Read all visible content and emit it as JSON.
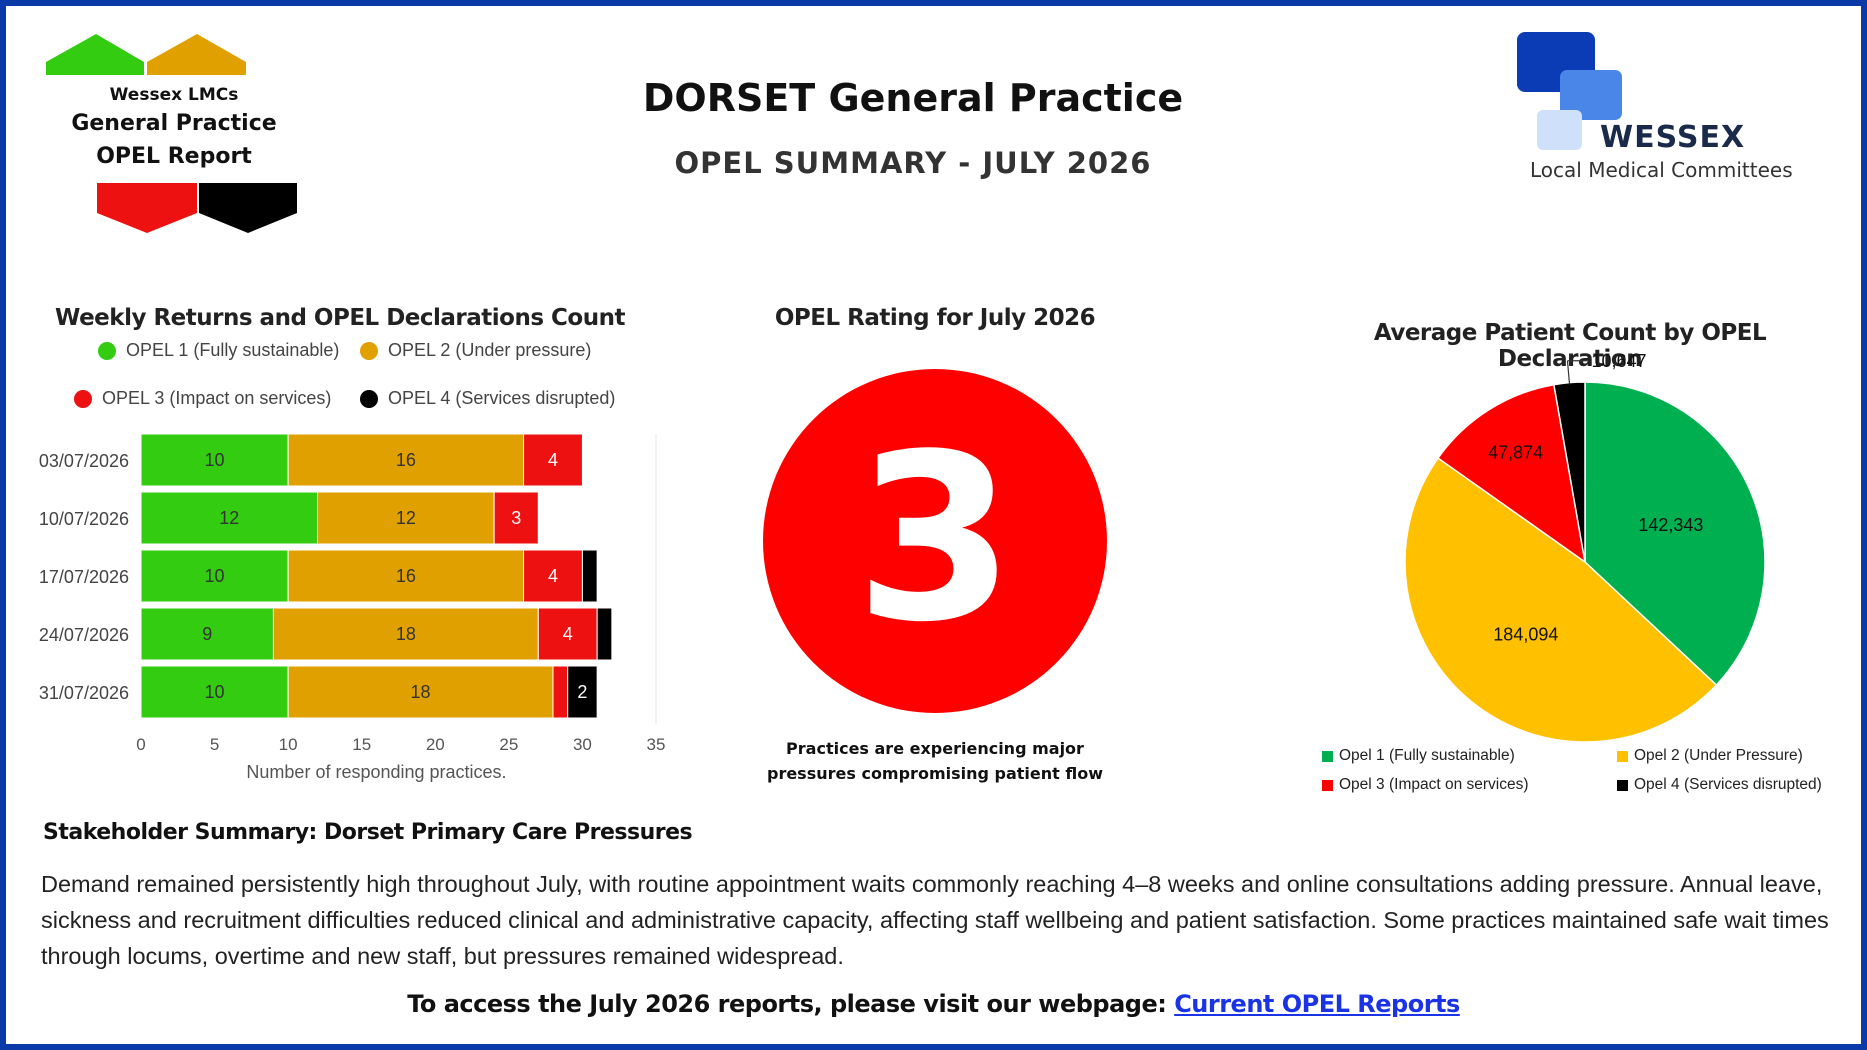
{
  "header": {
    "title": "DORSET General Practice",
    "subtitle": "OPEL SUMMARY - JULY 2026"
  },
  "lmc_badge": {
    "line1": "Wessex LMCs",
    "line2": "General Practice",
    "line3": "OPEL Report"
  },
  "wessex_logo": {
    "name": "WESSEX",
    "tagline": "Local Medical Committees"
  },
  "colors": {
    "opel1": "#33cc11",
    "opel2": "#e0a000",
    "opel3": "#ee1111",
    "opel4": "#000000",
    "pie_opel1": "#00b050",
    "pie_opel2": "#ffc000",
    "pie_opel3": "#ff0000",
    "pie_opel4": "#000000",
    "frame": "#0a3aa8",
    "link": "#1a33e6"
  },
  "bar_chart": {
    "title": "Weekly Returns and OPEL Declarations Count",
    "legend": [
      "OPEL 1 (Fully sustainable)",
      "OPEL 2 (Under pressure)",
      "OPEL 3 (Impact on services)",
      "OPEL 4 (Services disrupted)"
    ]
  },
  "rating": {
    "title": "OPEL Rating for July 2026",
    "value": "3",
    "caption_line1": "Practices are experiencing major",
    "caption_line2": "pressures compromising patient flow"
  },
  "pie_chart_meta": {
    "title": "Average Patient Count by OPEL Declaration",
    "legend": [
      "Opel 1 (Fully sustainable)",
      "Opel 2 (Under Pressure)",
      "Opel 3 (Impact on services)",
      "Opel 4 (Services disrupted)"
    ]
  },
  "summary": {
    "title": "Stakeholder Summary: Dorset Primary Care Pressures",
    "body": "Demand remained persistently high throughout July, with routine appointment waits commonly reaching 4–8 weeks and online consultations adding pressure. Annual leave, sickness and recruitment difficulties reduced clinical and administrative capacity, affecting staff wellbeing and patient satisfaction. Some practices maintained safe wait times through locums, overtime and new staff, but pressures remained widespread."
  },
  "footer": {
    "text": "To access the July 2026 reports, please visit our webpage: ",
    "link_label": "Current OPEL Reports"
  },
  "chart_data": [
    {
      "type": "bar",
      "orientation": "horizontal",
      "stacked": true,
      "title": "Weekly Returns and OPEL Declarations Count",
      "categories": [
        "03/07/2026",
        "10/07/2026",
        "17/07/2026",
        "24/07/2026",
        "31/07/2026"
      ],
      "series": [
        {
          "name": "OPEL 1 (Fully sustainable)",
          "values": [
            10,
            12,
            10,
            9,
            10
          ],
          "labels": [
            "10",
            "12",
            "10",
            "9",
            "10"
          ]
        },
        {
          "name": "OPEL 2 (Under pressure)",
          "values": [
            16,
            12,
            16,
            18,
            18
          ],
          "labels": [
            "16",
            "12",
            "16",
            "18",
            "18"
          ]
        },
        {
          "name": "OPEL 3 (Impact on services)",
          "values": [
            4,
            3,
            4,
            4,
            1
          ],
          "labels": [
            "4",
            "3",
            "4",
            "4",
            ""
          ]
        },
        {
          "name": "OPEL 4 (Services disrupted)",
          "values": [
            0,
            0,
            1,
            1,
            2
          ],
          "labels": [
            "",
            "",
            "",
            "",
            "2"
          ]
        }
      ],
      "xlabel": "Number of responding practices.",
      "xlim": [
        0,
        35
      ],
      "xticks": [
        "0",
        "5",
        "10",
        "15",
        "20",
        "25",
        "30",
        "35"
      ],
      "legend_position": "top"
    },
    {
      "type": "pie",
      "title": "Average Patient Count by OPEL Declaration",
      "labels": [
        "Opel 1 (Fully sustainable)",
        "Opel 2 (Under Pressure)",
        "Opel 3 (Impact on services)",
        "Opel 4 (Services disrupted)"
      ],
      "values": [
        142343,
        184094,
        47874,
        10647
      ],
      "value_labels": [
        "142,343",
        "184,094",
        "47,874",
        "10,647"
      ],
      "legend_position": "bottom"
    }
  ]
}
